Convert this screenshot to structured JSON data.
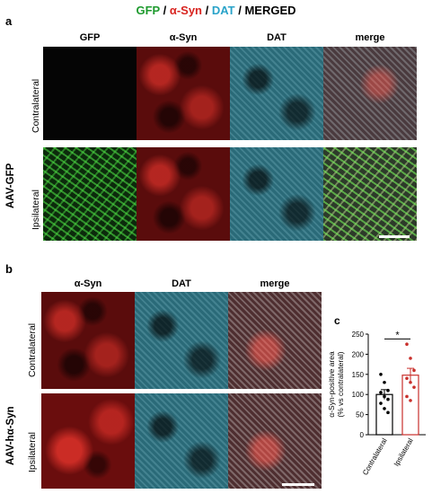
{
  "figure_title": {
    "gfp": "GFP",
    "sep1": " / ",
    "asyn": "α-Syn",
    "sep2": " / ",
    "dat": "DAT",
    "sep3": " / ",
    "merged": "MERGED"
  },
  "panel_a": {
    "letter": "a",
    "group_label": "AAV-GFP",
    "columns": [
      "GFP",
      "α-Syn",
      "DAT",
      "merge"
    ],
    "rows": [
      "Contralateral",
      "Ipsilateral"
    ]
  },
  "panel_b": {
    "letter": "b",
    "group_label": "AAV-hα-Syn",
    "columns": [
      "α-Syn",
      "DAT",
      "merge"
    ],
    "rows": [
      "Contralateral",
      "Ipsilateral"
    ]
  },
  "panel_c": {
    "letter": "c"
  },
  "chart_data": {
    "type": "bar",
    "categories": [
      "Contralateral",
      "Ipsilateral"
    ],
    "values": [
      100,
      148
    ],
    "errors": [
      12,
      17
    ],
    "points": [
      [
        150,
        130,
        110,
        105,
        95,
        88,
        78,
        65,
        55
      ],
      [
        225,
        190,
        160,
        140,
        130,
        118,
        95,
        85
      ]
    ],
    "bar_fill": [
      "#ffffff",
      "#ffffff"
    ],
    "bar_edge": [
      "#000000",
      "#c9302c"
    ],
    "point_colors": [
      "#000000",
      "#c9302c"
    ],
    "ylabel": "α-Syn-positive area\n(% vs contralateral)",
    "yticks": [
      0,
      50,
      100,
      150,
      200,
      250
    ],
    "ylim": [
      0,
      250
    ],
    "significance": "*"
  }
}
